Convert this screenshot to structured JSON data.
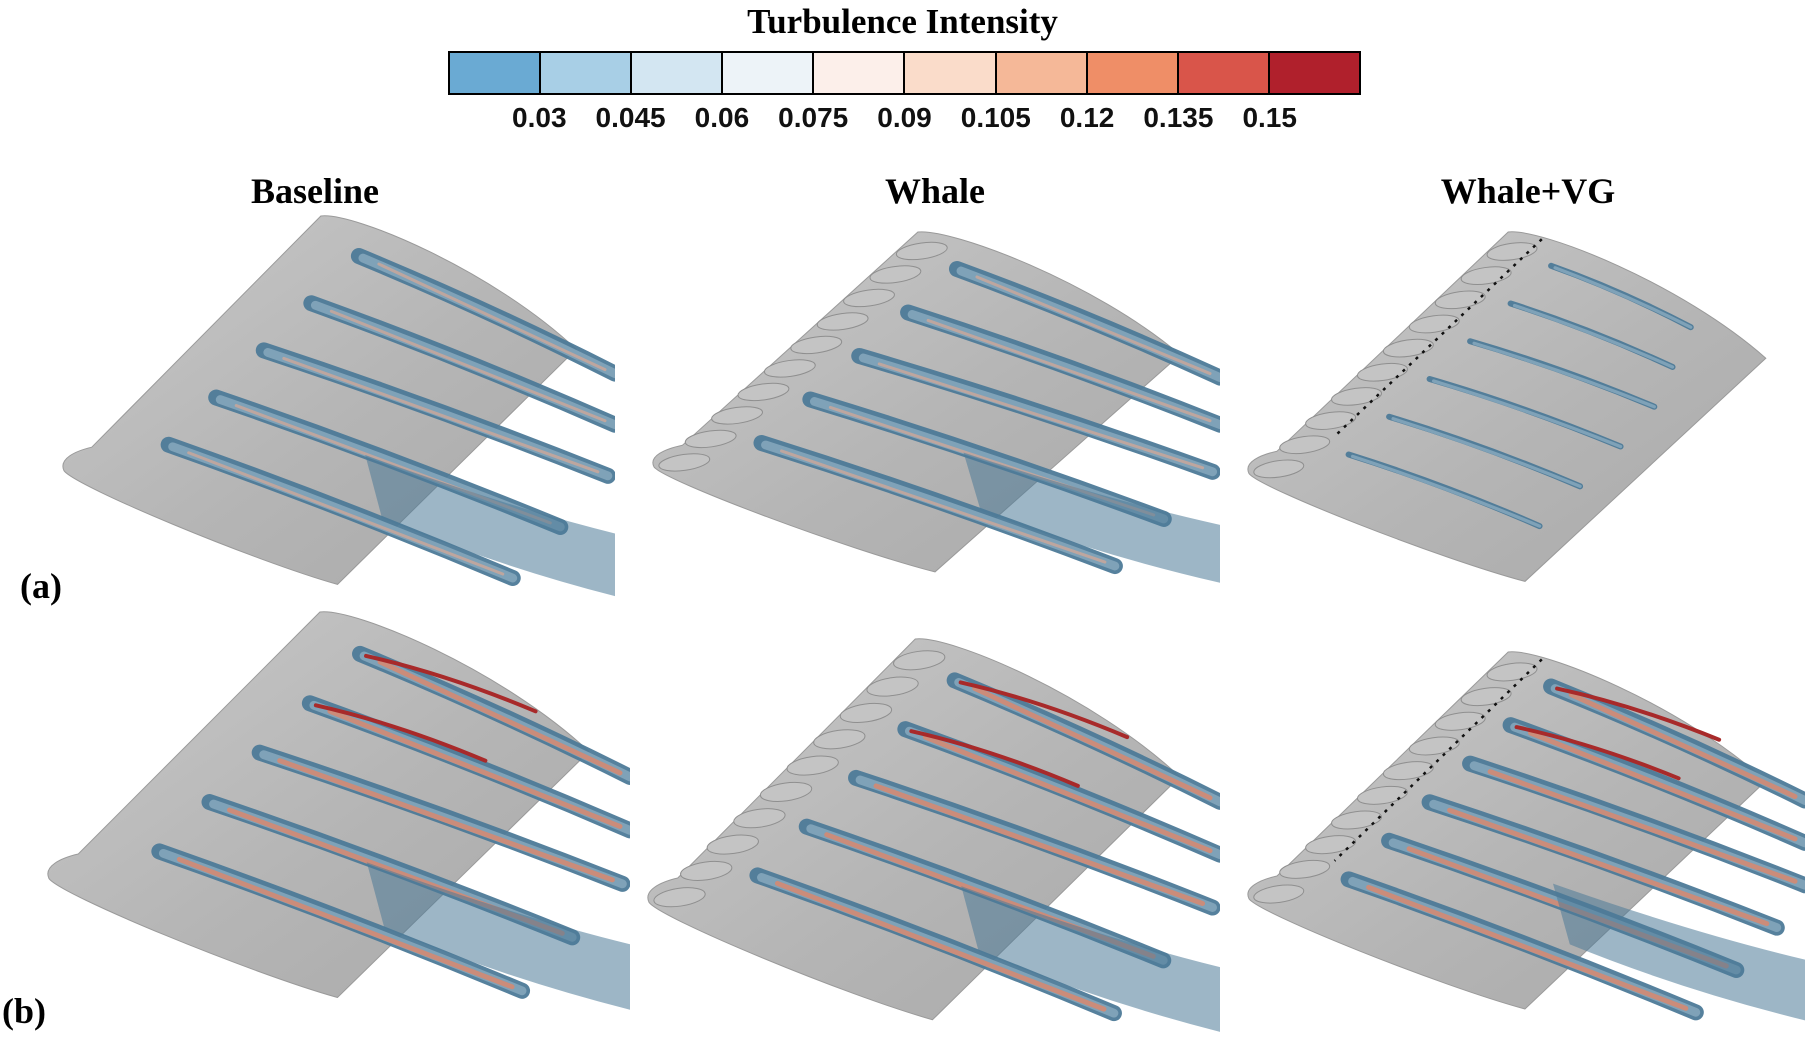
{
  "figure": {
    "colorbar": {
      "title": "Turbulence Intensity",
      "ticks": [
        "0.03",
        "0.045",
        "0.06",
        "0.075",
        "0.09",
        "0.105",
        "0.12",
        "0.135",
        "0.15"
      ],
      "colors": [
        "#6aaad3",
        "#a8cfe6",
        "#d3e6f2",
        "#edf3f8",
        "#fcefea",
        "#fadcca",
        "#f5b898",
        "#ef8e67",
        "#d9554a",
        "#b0202c"
      ]
    },
    "columns": [
      "Baseline",
      "Whale",
      "Whale+VG"
    ],
    "rows": [
      "(a)",
      "(b)"
    ],
    "surface_color": "#b5b5b5",
    "streak_colors": {
      "outer": "#4d7a98",
      "mid": "#7fa2b8",
      "inner": "#c9a79a",
      "warm": "#d8886f",
      "hot": "#a82a2a"
    }
  }
}
